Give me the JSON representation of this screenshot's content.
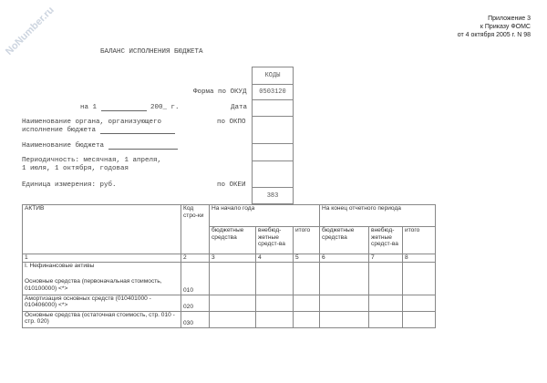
{
  "watermark": "NoNumber.ru",
  "appendix": [
    "Приложение 3",
    "к Приказу ФОМС",
    "от 4 октября 2005 г. N 98"
  ],
  "title": "БАЛАНС ИСПОЛНЕНИЯ БЮДЖЕТА",
  "codes": {
    "header": "КОДЫ",
    "okud": "0503120",
    "okei": "383"
  },
  "labels": {
    "okud": "Форма по ОКУД",
    "date_prefix": "на 1",
    "date_year": "200_ г.",
    "date": "Дата",
    "okpo": "по ОКПО",
    "org1": "Наименование органа, организующего",
    "org2": "исполнение бюджета",
    "budget": "Наименование бюджета",
    "period1": "Периодичность: месячная, 1 апреля,",
    "period2": "1 июля, 1 октября, годовая",
    "unit": "Единица измерения: руб.",
    "okei": "по ОКЕИ"
  },
  "table": {
    "h_asset": "АКТИВ",
    "h_code": "Код стро-ки",
    "h_start": "На начало года",
    "h_end": "На конец отчетного периода",
    "sub": [
      "бюджетные средства",
      "внебюд-жетные средст-ва",
      "итого",
      "бюджетные средства",
      "внебюд-жетные средст-ва",
      "итого"
    ],
    "nums": [
      "1",
      "2",
      "3",
      "4",
      "5",
      "6",
      "7",
      "8"
    ],
    "section": "I. Нефинансовые активы",
    "rows": [
      {
        "name": "Основные средства (первоначальная стоимость, 010100000) <*>",
        "code": "010"
      },
      {
        "name": "Амортизация основных средств (010401000 - 010406000) <*>",
        "code": "020"
      },
      {
        "name": "Основные средства (остаточная стоимость, стр. 010 - стр. 020)",
        "code": "030"
      }
    ]
  }
}
